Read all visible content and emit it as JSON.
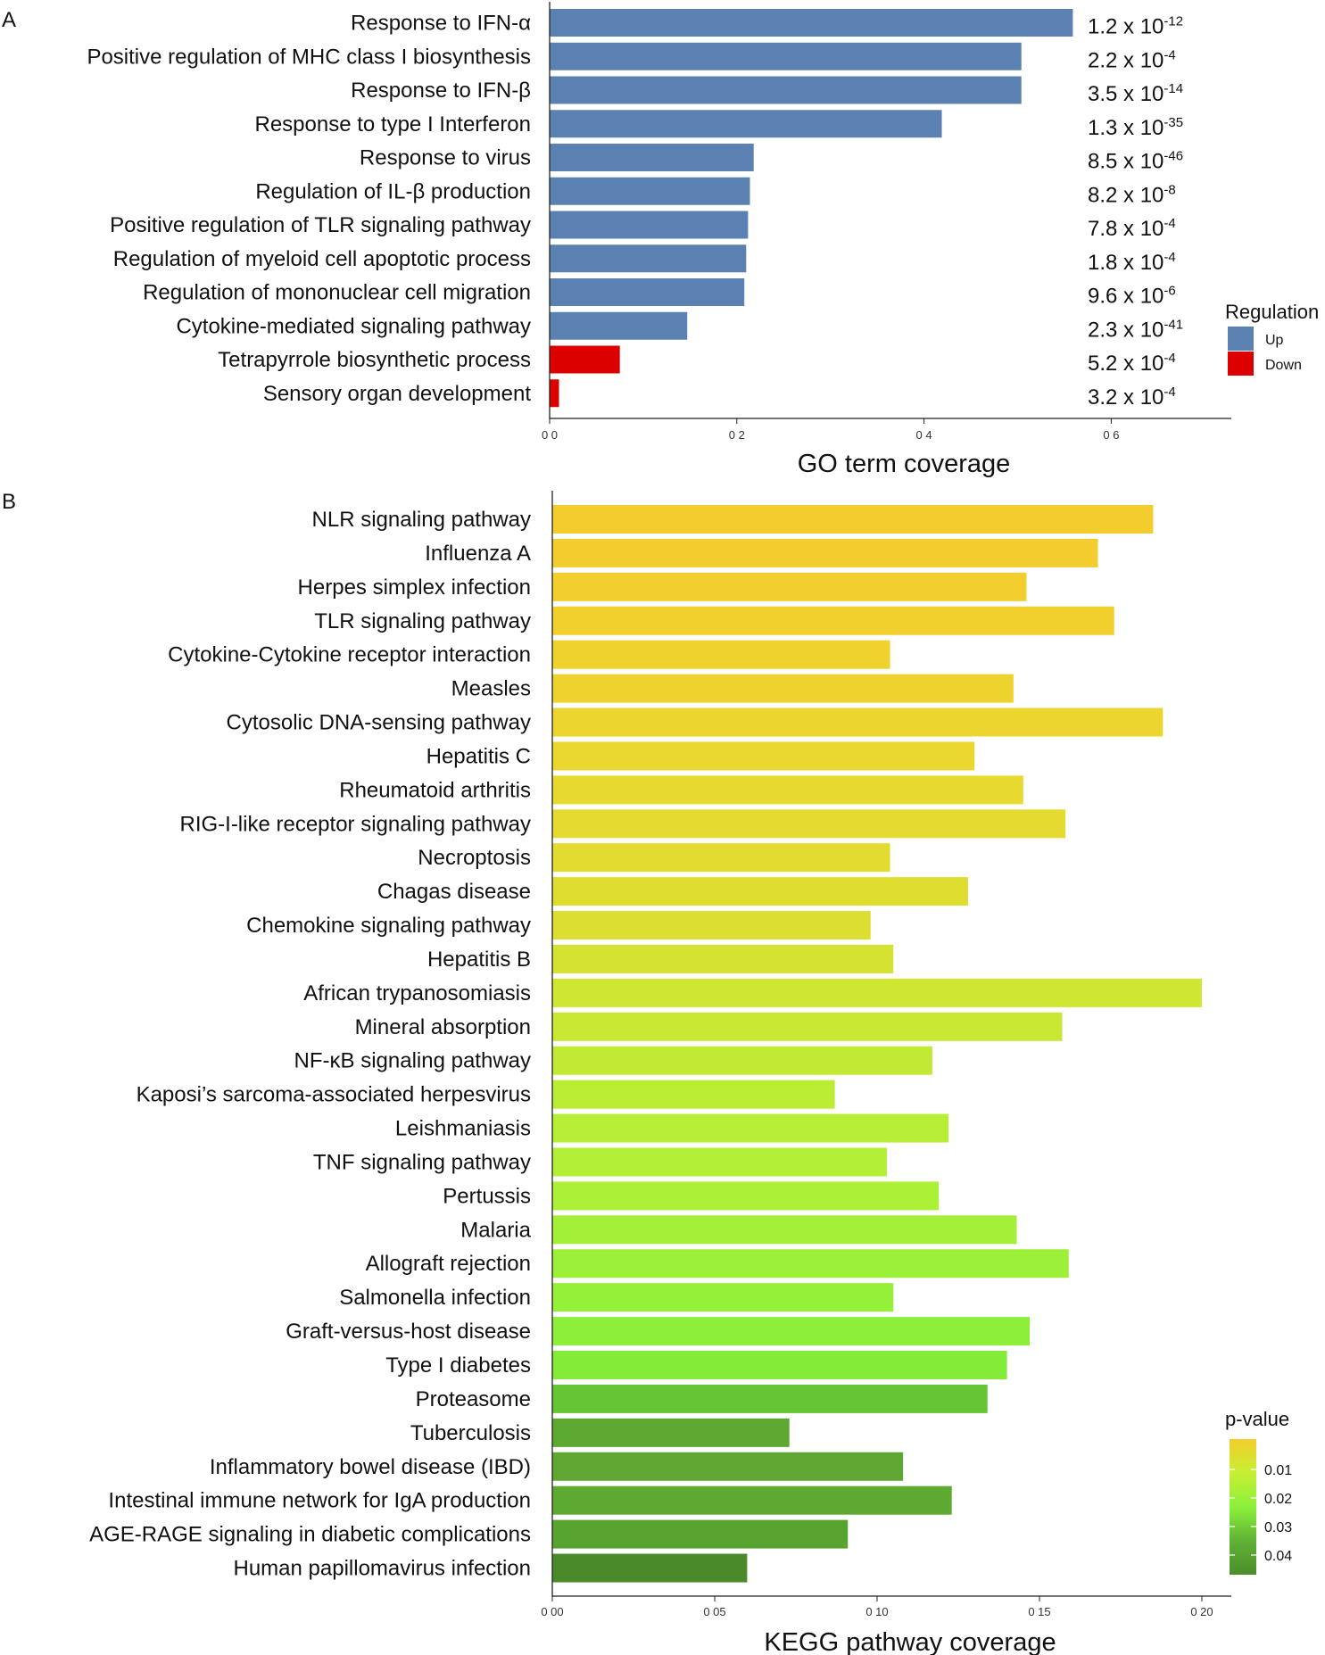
{
  "panels": {
    "a": {
      "letter": "A"
    },
    "b": {
      "letter": "B"
    }
  },
  "chart_data": [
    {
      "type": "bar",
      "orientation": "horizontal",
      "xlabel": "GO term coverage",
      "ylabel": "",
      "xlim": [
        0,
        0.74
      ],
      "xticks": [
        0,
        0.2,
        0.4,
        0.6
      ],
      "xtick_labels": [
        "0 0",
        "0 2",
        "0 4",
        "0 6"
      ],
      "categories": [
        "Response to IFN-α",
        "Positive regulation of MHC class I biosynthesis",
        "Response to IFN-β",
        "Response to type I Interferon",
        "Response to virus",
        "Regulation of IL-β production",
        "Positive regulation of TLR signaling pathway",
        "Regulation of myeloid cell apoptotic process",
        "Regulation of mononuclear cell migration",
        "Cytokine-mediated signaling pathway",
        "Tetrapyrrole biosynthetic process",
        "Sensory organ development"
      ],
      "values": [
        0.559,
        0.504,
        0.504,
        0.419,
        0.218,
        0.214,
        0.212,
        0.21,
        0.208,
        0.147,
        0.075,
        0.01
      ],
      "regulation": [
        "Up",
        "Up",
        "Up",
        "Up",
        "Up",
        "Up",
        "Up",
        "Up",
        "Up",
        "Up",
        "Down",
        "Down"
      ],
      "p_values": [
        {
          "mantissa": "1.2",
          "exponent": "-12"
        },
        {
          "mantissa": "2.2",
          "exponent": "-4"
        },
        {
          "mantissa": "3.5",
          "exponent": "-14"
        },
        {
          "mantissa": "1.3",
          "exponent": "-35"
        },
        {
          "mantissa": "8.5",
          "exponent": "-46"
        },
        {
          "mantissa": "8.2",
          "exponent": "-8"
        },
        {
          "mantissa": "7.8",
          "exponent": "-4"
        },
        {
          "mantissa": "1.8",
          "exponent": "-4"
        },
        {
          "mantissa": "9.6",
          "exponent": "-6"
        },
        {
          "mantissa": "2.3",
          "exponent": "-41"
        },
        {
          "mantissa": "5.2",
          "exponent": "-4"
        },
        {
          "mantissa": "3.2",
          "exponent": "-4"
        }
      ],
      "p_value_times": "x 10",
      "legend": {
        "title": "Regulation",
        "position": "right",
        "items": [
          {
            "label": "Up",
            "color": "#5b80b2"
          },
          {
            "label": "Down",
            "color": "#dd0000"
          }
        ]
      }
    },
    {
      "type": "bar",
      "orientation": "horizontal",
      "xlabel": "KEGG pathway coverage",
      "ylabel": "",
      "xlim": [
        0,
        0.21
      ],
      "xticks": [
        0,
        0.05,
        0.1,
        0.15,
        0.2
      ],
      "xtick_labels": [
        "0 00",
        "0 05",
        "0 10",
        "0 15",
        "0 20"
      ],
      "categories": [
        "NLR signaling pathway",
        "Influenza A",
        "Herpes simplex infection",
        "TLR signaling pathway",
        "Cytokine-Cytokine receptor interaction",
        "Measles",
        "Cytosolic DNA-sensing pathway",
        "Hepatitis C",
        "Rheumatoid arthritis",
        "RIG-I-like receptor signaling pathway",
        "Necroptosis",
        "Chagas disease",
        "Chemokine signaling pathway",
        "Hepatitis B",
        "African trypanosomiasis",
        "Mineral absorption",
        "NF-κB signaling pathway",
        "Kaposi’s sarcoma-associated herpesvirus",
        "Leishmaniasis",
        "TNF signaling pathway",
        "Pertussis",
        "Malaria",
        "Allograft rejection",
        "Salmonella infection",
        "Graft-versus-host disease",
        "Type I diabetes",
        "Proteasome",
        "Tuberculosis",
        "Inflammatory bowel disease (IBD)",
        "Intestinal immune network for IgA production",
        "AGE-RAGE signaling in diabetic complications",
        "Human papillomavirus infection"
      ],
      "values": [
        0.185,
        0.168,
        0.146,
        0.173,
        0.104,
        0.142,
        0.188,
        0.13,
        0.145,
        0.158,
        0.104,
        0.128,
        0.098,
        0.105,
        0.2,
        0.157,
        0.117,
        0.087,
        0.122,
        0.103,
        0.119,
        0.143,
        0.159,
        0.105,
        0.147,
        0.14,
        0.134,
        0.073,
        0.108,
        0.123,
        0.091,
        0.06
      ],
      "bar_colors": [
        "#f3cd2d",
        "#f3cd2d",
        "#f2cf2e",
        "#f1d02e",
        "#efd22e",
        "#eed32f",
        "#edd52f",
        "#ead730",
        "#e8d930",
        "#e5da30",
        "#e3dc30",
        "#e0dd31",
        "#dcdf31",
        "#d4e232",
        "#cfe633",
        "#c8e834",
        "#c2ea34",
        "#bced35",
        "#b7ee36",
        "#b2ef36",
        "#acf037",
        "#a4f038",
        "#9cf038",
        "#94f039",
        "#8def39",
        "#84ec39",
        "#66c535",
        "#5da831",
        "#5fa732",
        "#5ea932",
        "#59a431",
        "#4a8a2a"
      ],
      "legend": {
        "title": "p-value",
        "position": "right",
        "ticks": [
          "0.01",
          "0.02",
          "0.03",
          "0.04"
        ],
        "colors_top_to_bottom": [
          "#f3cd2d",
          "#c6f034",
          "#8cf03a",
          "#5fb235",
          "#4d8d2c"
        ]
      }
    }
  ]
}
